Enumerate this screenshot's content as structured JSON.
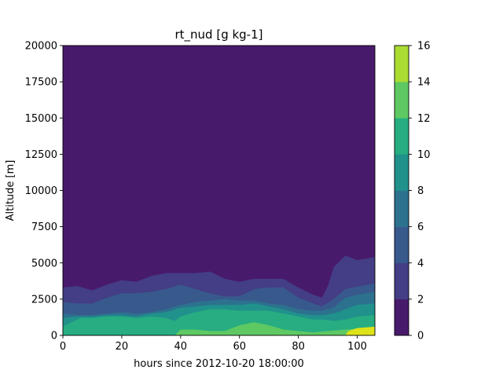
{
  "chart_data": {
    "type": "heatmap",
    "subtype": "filled-contour",
    "title": "rt_nud [g kg-1]",
    "xlabel": "hours since 2012-10-20 18:00:00",
    "ylabel": "Altitude [m]",
    "xlim": [
      0,
      106
    ],
    "ylim": [
      0,
      20000
    ],
    "xticks": [
      "0",
      "20",
      "40",
      "60",
      "80",
      "100"
    ],
    "yticks": [
      "0",
      "2500",
      "5000",
      "7500",
      "10000",
      "12500",
      "15000",
      "17500",
      "20000"
    ],
    "colorbar": {
      "levels": [
        0,
        2,
        4,
        6,
        8,
        10,
        12,
        14,
        16
      ],
      "ticks": [
        "0",
        "2",
        "4",
        "6",
        "8",
        "10",
        "12",
        "14",
        "16"
      ],
      "colors": [
        "#481a6c",
        "#433e85",
        "#38598c",
        "#2c728e",
        "#21918c",
        "#27ad81",
        "#5ec962",
        "#aadc32",
        "#dde318"
      ]
    },
    "contours": [
      {
        "band": "2-4",
        "color": "#433e85",
        "points": [
          [
            0,
            3300
          ],
          [
            5,
            3400
          ],
          [
            10,
            3100
          ],
          [
            15,
            3500
          ],
          [
            20,
            3800
          ],
          [
            25,
            3700
          ],
          [
            30,
            4100
          ],
          [
            35,
            4300
          ],
          [
            40,
            4300
          ],
          [
            45,
            4300
          ],
          [
            50,
            4400
          ],
          [
            55,
            3900
          ],
          [
            60,
            3700
          ],
          [
            65,
            3900
          ],
          [
            70,
            3900
          ],
          [
            75,
            3900
          ],
          [
            80,
            3300
          ],
          [
            85,
            2800
          ],
          [
            88,
            2600
          ],
          [
            90,
            3400
          ],
          [
            92,
            4700
          ],
          [
            96,
            5500
          ],
          [
            100,
            5200
          ],
          [
            106,
            5400
          ],
          [
            106,
            0
          ],
          [
            0,
            0
          ]
        ]
      },
      {
        "band": "4-6",
        "color": "#38598c",
        "points": [
          [
            0,
            2300
          ],
          [
            5,
            2200
          ],
          [
            10,
            2200
          ],
          [
            15,
            2600
          ],
          [
            20,
            2900
          ],
          [
            25,
            2900
          ],
          [
            30,
            3000
          ],
          [
            35,
            3200
          ],
          [
            40,
            3500
          ],
          [
            45,
            3200
          ],
          [
            50,
            2900
          ],
          [
            55,
            2700
          ],
          [
            60,
            2700
          ],
          [
            65,
            3200
          ],
          [
            70,
            3300
          ],
          [
            75,
            3300
          ],
          [
            80,
            2600
          ],
          [
            85,
            2200
          ],
          [
            88,
            2000
          ],
          [
            92,
            2500
          ],
          [
            96,
            3200
          ],
          [
            106,
            3600
          ],
          [
            106,
            0
          ],
          [
            0,
            0
          ]
        ]
      },
      {
        "band": "6-8",
        "color": "#2c728e",
        "points": [
          [
            0,
            1500
          ],
          [
            5,
            1400
          ],
          [
            10,
            1400
          ],
          [
            15,
            1500
          ],
          [
            20,
            1600
          ],
          [
            25,
            1500
          ],
          [
            30,
            1600
          ],
          [
            35,
            1800
          ],
          [
            40,
            2100
          ],
          [
            45,
            2300
          ],
          [
            50,
            2400
          ],
          [
            55,
            2500
          ],
          [
            60,
            2400
          ],
          [
            65,
            2400
          ],
          [
            70,
            2200
          ],
          [
            75,
            2100
          ],
          [
            80,
            1800
          ],
          [
            85,
            1700
          ],
          [
            88,
            1700
          ],
          [
            92,
            1900
          ],
          [
            96,
            2600
          ],
          [
            100,
            2800
          ],
          [
            106,
            3000
          ],
          [
            106,
            0
          ],
          [
            0,
            0
          ]
        ]
      },
      {
        "band": "8-10",
        "color": "#21918c",
        "points": [
          [
            0,
            1200
          ],
          [
            5,
            1300
          ],
          [
            10,
            1300
          ],
          [
            15,
            1400
          ],
          [
            20,
            1400
          ],
          [
            25,
            1300
          ],
          [
            30,
            1500
          ],
          [
            35,
            1600
          ],
          [
            40,
            1900
          ],
          [
            45,
            2000
          ],
          [
            50,
            2100
          ],
          [
            55,
            2100
          ],
          [
            60,
            2100
          ],
          [
            65,
            2200
          ],
          [
            70,
            2000
          ],
          [
            75,
            1800
          ],
          [
            80,
            1500
          ],
          [
            85,
            1400
          ],
          [
            88,
            1400
          ],
          [
            92,
            1500
          ],
          [
            96,
            1800
          ],
          [
            100,
            2100
          ],
          [
            106,
            2200
          ],
          [
            106,
            0
          ],
          [
            0,
            0
          ]
        ]
      },
      {
        "band": "10-12",
        "color": "#27ad81",
        "points": [
          [
            0,
            600
          ],
          [
            3,
            900
          ],
          [
            6,
            1200
          ],
          [
            10,
            1200
          ],
          [
            15,
            1300
          ],
          [
            20,
            1300
          ],
          [
            25,
            1200
          ],
          [
            30,
            1300
          ],
          [
            35,
            1200
          ],
          [
            38,
            1000
          ],
          [
            40,
            1300
          ],
          [
            45,
            1600
          ],
          [
            50,
            1800
          ],
          [
            55,
            1800
          ],
          [
            60,
            1700
          ],
          [
            65,
            1700
          ],
          [
            70,
            1700
          ],
          [
            75,
            1500
          ],
          [
            80,
            1300
          ],
          [
            85,
            1100
          ],
          [
            88,
            1100
          ],
          [
            92,
            1000
          ],
          [
            96,
            1100
          ],
          [
            100,
            1300
          ],
          [
            106,
            1400
          ],
          [
            106,
            0
          ],
          [
            0,
            0
          ]
        ]
      },
      {
        "band": "12-14",
        "color": "#5ec962",
        "points": [
          [
            0,
            0
          ],
          [
            38,
            0
          ],
          [
            40,
            400
          ],
          [
            45,
            400
          ],
          [
            50,
            300
          ],
          [
            55,
            300
          ],
          [
            60,
            700
          ],
          [
            65,
            900
          ],
          [
            70,
            700
          ],
          [
            75,
            400
          ],
          [
            80,
            300
          ],
          [
            85,
            200
          ],
          [
            90,
            300
          ],
          [
            96,
            400
          ],
          [
            106,
            600
          ],
          [
            106,
            0
          ]
        ]
      },
      {
        "band": "14-16",
        "color": "#dde318",
        "points": [
          [
            96,
            0
          ],
          [
            97,
            300
          ],
          [
            100,
            500
          ],
          [
            106,
            600
          ],
          [
            106,
            0
          ]
        ]
      }
    ]
  }
}
